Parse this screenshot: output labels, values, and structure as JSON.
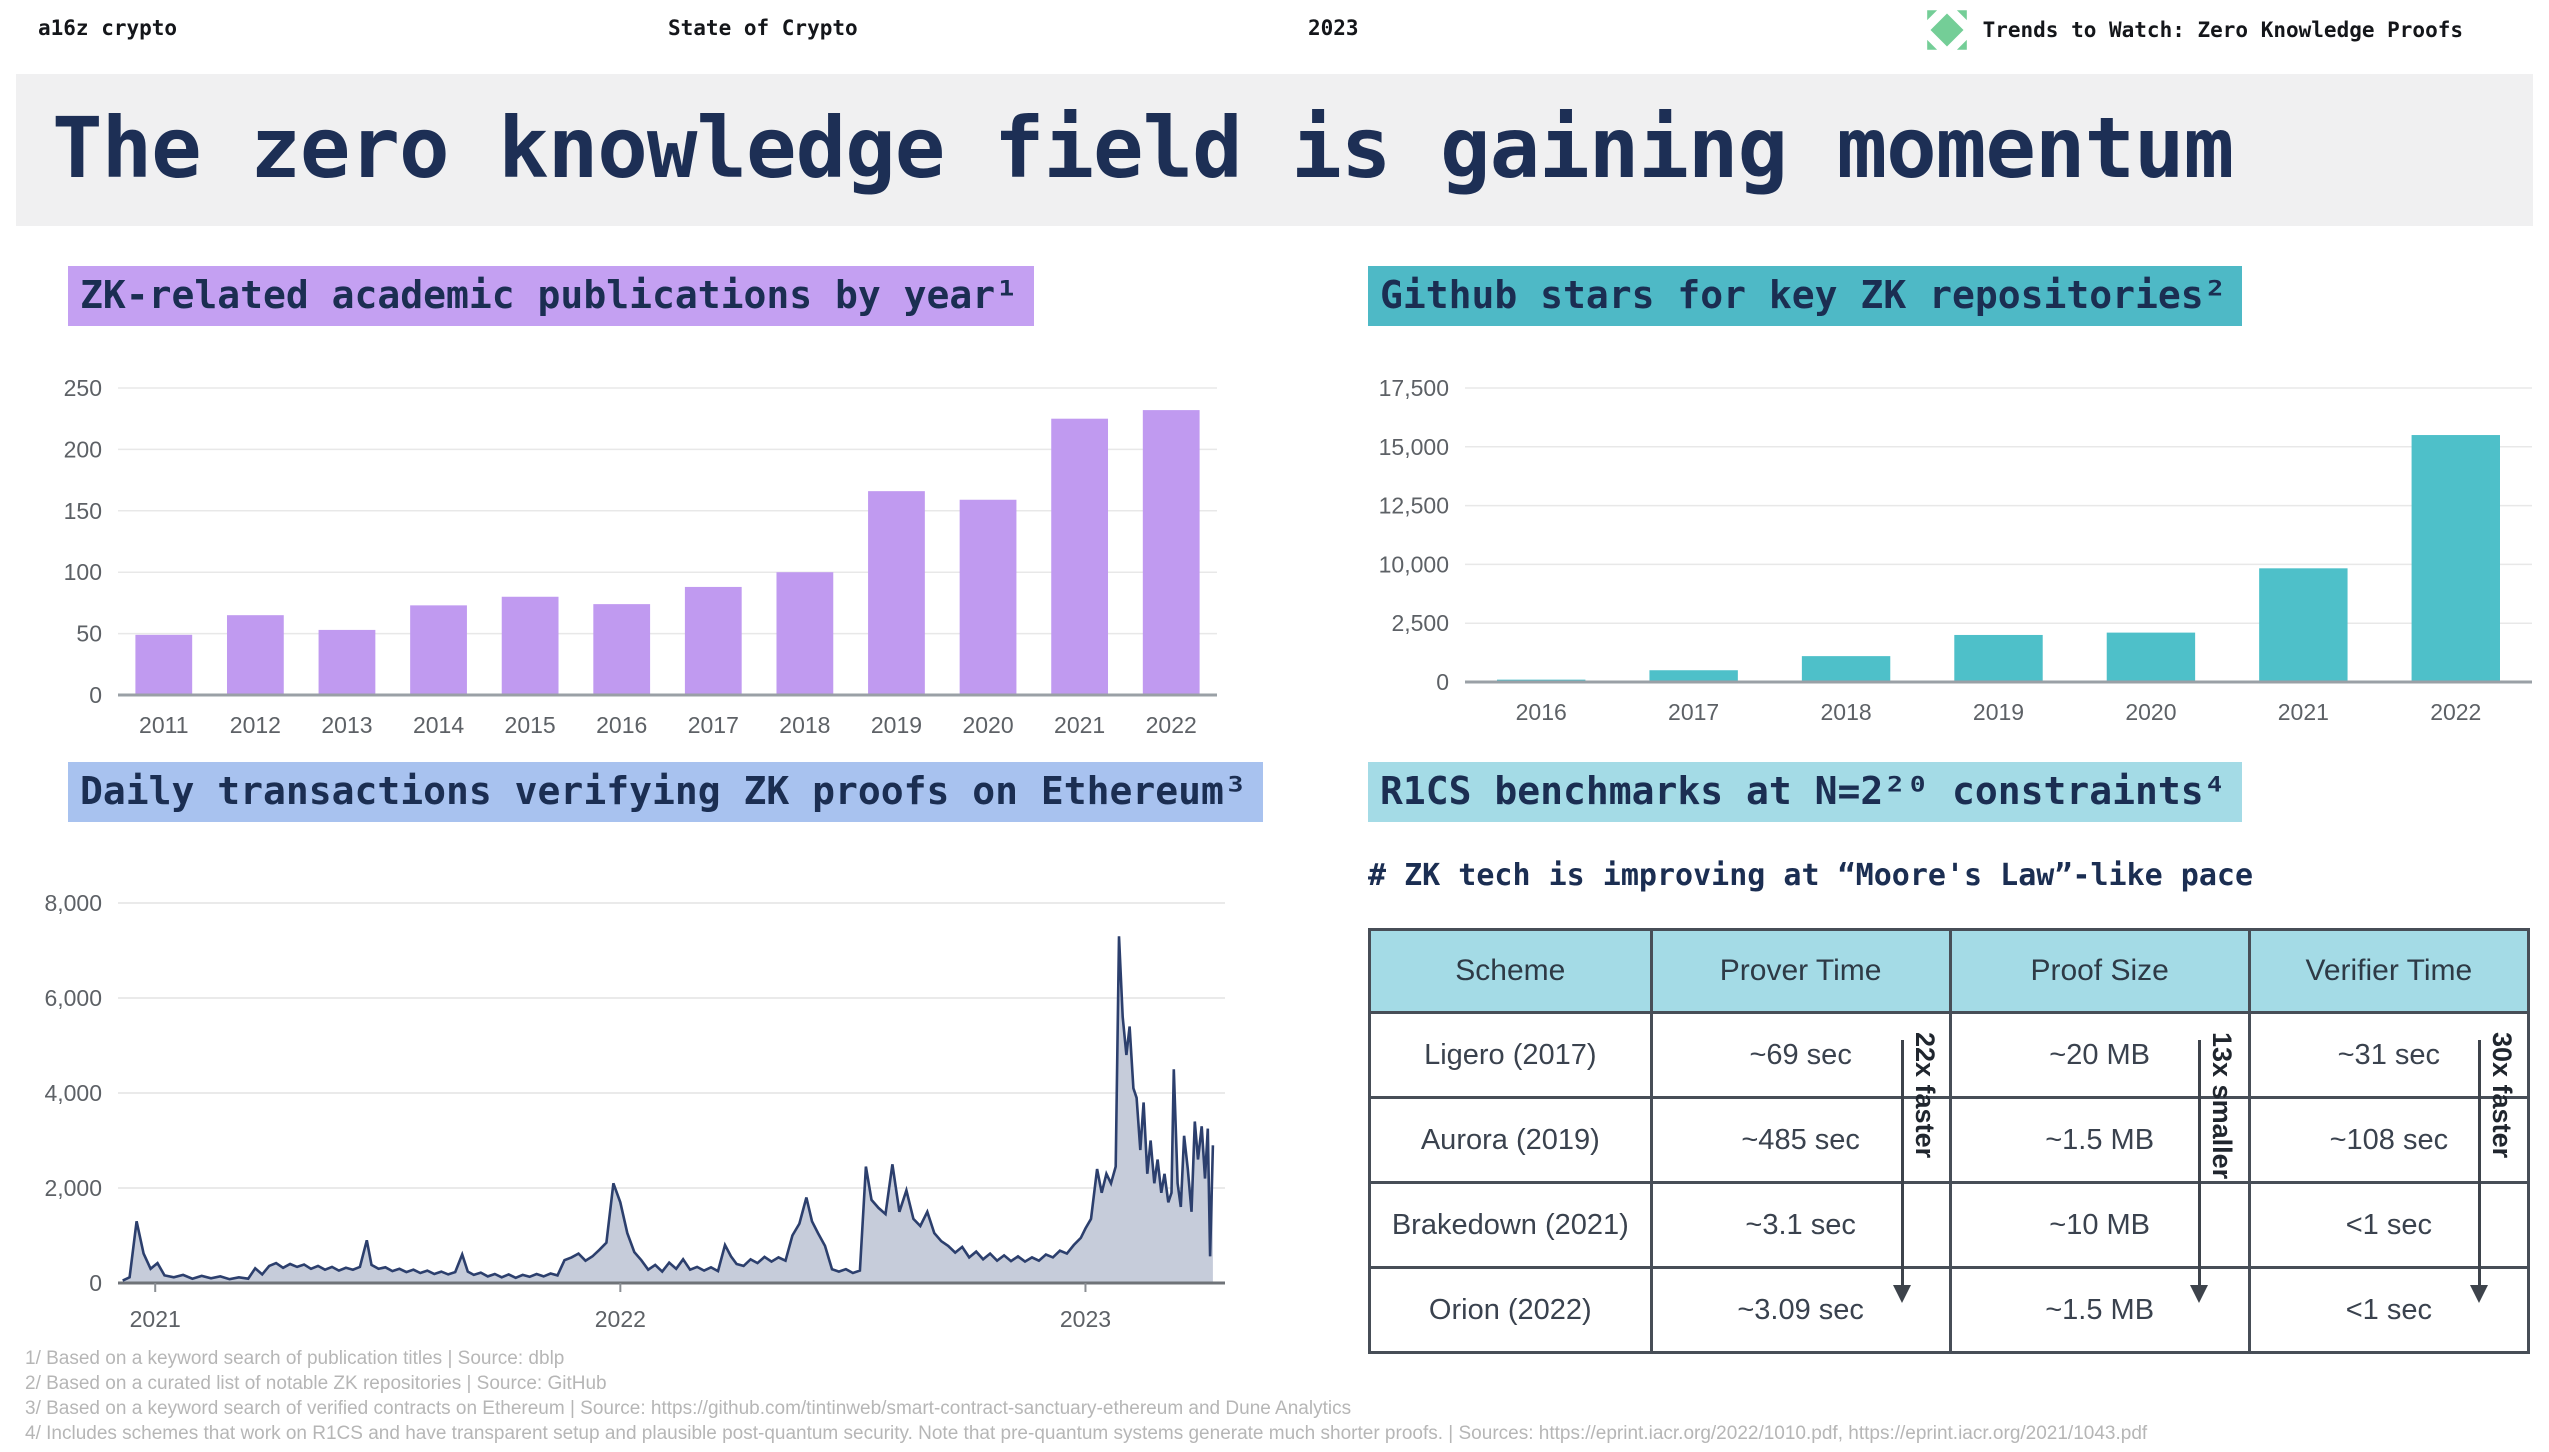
{
  "header": {
    "brand": "a16z crypto",
    "deck": "State of Crypto",
    "year": "2023",
    "right": "Trends to Watch: Zero Knowledge Proofs",
    "logo_color": "#74ce97"
  },
  "title": "The zero knowledge field is gaining momentum",
  "chart_data": [
    {
      "type": "bar",
      "title": "ZK-related academic publications by year¹",
      "highlight": "#c4a0f2",
      "color": "#c09af0",
      "categories": [
        "2011",
        "2012",
        "2013",
        "2014",
        "2015",
        "2016",
        "2017",
        "2018",
        "2019",
        "2020",
        "2021",
        "2022"
      ],
      "values": [
        49,
        65,
        53,
        73,
        80,
        74,
        88,
        100,
        166,
        159,
        225,
        232
      ],
      "y_ticks": {
        "values": [
          0,
          50,
          100,
          150,
          200,
          250
        ],
        "labels": [
          "0",
          "50",
          "100",
          "150",
          "200",
          "250"
        ]
      },
      "xlabel": "",
      "ylabel": "",
      "grid": true,
      "ylim": [
        0,
        250
      ]
    },
    {
      "type": "bar",
      "title": "Github stars for key ZK repositories²",
      "highlight": "#4eb9c6",
      "color": "#4ec0c9",
      "categories": [
        "2016",
        "2017",
        "2018",
        "2019",
        "2020",
        "2021",
        "2022"
      ],
      "values": [
        100,
        500,
        1100,
        2000,
        2100,
        9500,
        15500
      ],
      "y_ticks": {
        "values": [
          0,
          2500,
          10000,
          12500,
          15000,
          17500
        ],
        "labels": [
          "0",
          "2,500",
          "10,000",
          "12,500",
          "15,000",
          "17,500"
        ]
      },
      "xlabel": "",
      "ylabel": "",
      "grid": true,
      "ylim": [
        0,
        17500
      ]
    },
    {
      "type": "area",
      "title": "Daily transactions verifying ZK proofs on Ethereum³",
      "highlight": "#a8c2ef",
      "line_color": "#2c3f6d",
      "fill_color": "#c6ccda",
      "x_range": [
        2020.92,
        2023.3
      ],
      "x_ticks": {
        "values": [
          2021,
          2022,
          2023
        ],
        "labels": [
          "2021",
          "2022",
          "2023"
        ]
      },
      "y_ticks": {
        "values": [
          0,
          2000,
          4000,
          6000,
          8000
        ],
        "labels": [
          "0",
          "2,000",
          "4,000",
          "6,000",
          "8,000"
        ]
      },
      "ylim": [
        0,
        8000
      ],
      "grid": true,
      "points": [
        [
          2020.93,
          50
        ],
        [
          2020.945,
          120
        ],
        [
          2020.96,
          1300
        ],
        [
          2020.975,
          620
        ],
        [
          2020.99,
          300
        ],
        [
          2021.005,
          420
        ],
        [
          2021.02,
          160
        ],
        [
          2021.04,
          120
        ],
        [
          2021.06,
          170
        ],
        [
          2021.08,
          90
        ],
        [
          2021.1,
          150
        ],
        [
          2021.12,
          100
        ],
        [
          2021.14,
          140
        ],
        [
          2021.16,
          80
        ],
        [
          2021.18,
          120
        ],
        [
          2021.2,
          90
        ],
        [
          2021.215,
          310
        ],
        [
          2021.23,
          180
        ],
        [
          2021.245,
          360
        ],
        [
          2021.26,
          420
        ],
        [
          2021.275,
          320
        ],
        [
          2021.29,
          400
        ],
        [
          2021.305,
          340
        ],
        [
          2021.32,
          390
        ],
        [
          2021.335,
          300
        ],
        [
          2021.35,
          360
        ],
        [
          2021.365,
          280
        ],
        [
          2021.38,
          340
        ],
        [
          2021.395,
          260
        ],
        [
          2021.41,
          320
        ],
        [
          2021.425,
          280
        ],
        [
          2021.44,
          340
        ],
        [
          2021.455,
          900
        ],
        [
          2021.465,
          380
        ],
        [
          2021.48,
          300
        ],
        [
          2021.495,
          330
        ],
        [
          2021.51,
          250
        ],
        [
          2021.525,
          300
        ],
        [
          2021.54,
          230
        ],
        [
          2021.555,
          280
        ],
        [
          2021.57,
          210
        ],
        [
          2021.585,
          260
        ],
        [
          2021.6,
          190
        ],
        [
          2021.615,
          240
        ],
        [
          2021.63,
          180
        ],
        [
          2021.645,
          230
        ],
        [
          2021.66,
          600
        ],
        [
          2021.672,
          240
        ],
        [
          2021.685,
          170
        ],
        [
          2021.7,
          220
        ],
        [
          2021.715,
          140
        ],
        [
          2021.73,
          190
        ],
        [
          2021.745,
          120
        ],
        [
          2021.76,
          180
        ],
        [
          2021.775,
          110
        ],
        [
          2021.79,
          170
        ],
        [
          2021.805,
          130
        ],
        [
          2021.82,
          190
        ],
        [
          2021.835,
          140
        ],
        [
          2021.85,
          200
        ],
        [
          2021.865,
          160
        ],
        [
          2021.88,
          480
        ],
        [
          2021.895,
          540
        ],
        [
          2021.91,
          620
        ],
        [
          2021.925,
          470
        ],
        [
          2021.94,
          560
        ],
        [
          2021.955,
          700
        ],
        [
          2021.97,
          850
        ],
        [
          2021.985,
          2100
        ],
        [
          2022.0,
          1700
        ],
        [
          2022.015,
          1050
        ],
        [
          2022.03,
          650
        ],
        [
          2022.045,
          480
        ],
        [
          2022.06,
          280
        ],
        [
          2022.075,
          380
        ],
        [
          2022.09,
          240
        ],
        [
          2022.105,
          430
        ],
        [
          2022.12,
          300
        ],
        [
          2022.135,
          500
        ],
        [
          2022.15,
          280
        ],
        [
          2022.165,
          340
        ],
        [
          2022.18,
          260
        ],
        [
          2022.195,
          330
        ],
        [
          2022.21,
          250
        ],
        [
          2022.225,
          800
        ],
        [
          2022.238,
          560
        ],
        [
          2022.25,
          400
        ],
        [
          2022.265,
          360
        ],
        [
          2022.28,
          500
        ],
        [
          2022.295,
          420
        ],
        [
          2022.31,
          550
        ],
        [
          2022.325,
          450
        ],
        [
          2022.34,
          540
        ],
        [
          2022.355,
          470
        ],
        [
          2022.37,
          1000
        ],
        [
          2022.385,
          1250
        ],
        [
          2022.4,
          1800
        ],
        [
          2022.412,
          1300
        ],
        [
          2022.425,
          1050
        ],
        [
          2022.44,
          780
        ],
        [
          2022.455,
          290
        ],
        [
          2022.47,
          240
        ],
        [
          2022.485,
          290
        ],
        [
          2022.5,
          210
        ],
        [
          2022.515,
          260
        ],
        [
          2022.528,
          2450
        ],
        [
          2022.54,
          1750
        ],
        [
          2022.555,
          1580
        ],
        [
          2022.57,
          1450
        ],
        [
          2022.585,
          2500
        ],
        [
          2022.6,
          1500
        ],
        [
          2022.615,
          1950
        ],
        [
          2022.63,
          1350
        ],
        [
          2022.645,
          1200
        ],
        [
          2022.66,
          1500
        ],
        [
          2022.675,
          1050
        ],
        [
          2022.69,
          880
        ],
        [
          2022.705,
          780
        ],
        [
          2022.72,
          640
        ],
        [
          2022.735,
          760
        ],
        [
          2022.75,
          540
        ],
        [
          2022.765,
          660
        ],
        [
          2022.78,
          500
        ],
        [
          2022.795,
          620
        ],
        [
          2022.81,
          470
        ],
        [
          2022.825,
          580
        ],
        [
          2022.84,
          460
        ],
        [
          2022.855,
          560
        ],
        [
          2022.87,
          450
        ],
        [
          2022.885,
          540
        ],
        [
          2022.9,
          470
        ],
        [
          2022.915,
          600
        ],
        [
          2022.93,
          540
        ],
        [
          2022.945,
          680
        ],
        [
          2022.96,
          620
        ],
        [
          2022.975,
          800
        ],
        [
          2022.99,
          950
        ],
        [
          2023.0,
          1150
        ],
        [
          2023.012,
          1350
        ],
        [
          2023.025,
          2400
        ],
        [
          2023.035,
          1900
        ],
        [
          2023.045,
          2300
        ],
        [
          2023.055,
          2100
        ],
        [
          2023.065,
          2450
        ],
        [
          2023.072,
          7300
        ],
        [
          2023.08,
          5600
        ],
        [
          2023.088,
          4800
        ],
        [
          2023.095,
          5400
        ],
        [
          2023.103,
          4100
        ],
        [
          2023.11,
          3900
        ],
        [
          2023.118,
          2800
        ],
        [
          2023.125,
          3800
        ],
        [
          2023.133,
          2300
        ],
        [
          2023.14,
          3000
        ],
        [
          2023.148,
          2100
        ],
        [
          2023.155,
          2600
        ],
        [
          2023.163,
          1900
        ],
        [
          2023.17,
          2300
        ],
        [
          2023.178,
          1700
        ],
        [
          2023.185,
          1900
        ],
        [
          2023.19,
          4500
        ],
        [
          2023.198,
          2100
        ],
        [
          2023.205,
          1600
        ],
        [
          2023.212,
          3100
        ],
        [
          2023.22,
          2400
        ],
        [
          2023.228,
          1500
        ],
        [
          2023.235,
          3400
        ],
        [
          2023.242,
          2600
        ],
        [
          2023.25,
          3300
        ],
        [
          2023.257,
          2200
        ],
        [
          2023.263,
          3250
        ],
        [
          2023.268,
          560
        ],
        [
          2023.274,
          2900
        ]
      ]
    },
    {
      "type": "table",
      "title": "R1CS benchmarks at N=2²⁰ constraints⁴",
      "highlight": "#a4dbe6",
      "subtitle": "# ZK tech is improving at “Moore's Law”-like pace",
      "headers": [
        "Scheme",
        "Prover Time",
        "Proof Size",
        "Verifier Time"
      ],
      "rows": [
        [
          "Ligero (2017)",
          "~69 sec",
          "~20 MB",
          "~31 sec"
        ],
        [
          "Aurora (2019)",
          "~485 sec",
          "~1.5 MB",
          "~108 sec"
        ],
        [
          "Brakedown (2021)",
          "~3.1 sec",
          "~10 MB",
          "<1 sec"
        ],
        [
          "Orion (2022)",
          "~3.09 sec",
          "~1.5 MB",
          "<1 sec"
        ]
      ],
      "annotations": [
        {
          "column": "Prover Time",
          "label": "22x faster"
        },
        {
          "column": "Proof Size",
          "label": "13x smaller"
        },
        {
          "column": "Verifier Time",
          "label": "30x faster"
        }
      ]
    }
  ],
  "footnotes": [
    "1/ Based on a keyword search of publication titles | Source: dblp",
    "2/ Based on a curated list of notable ZK repositories | Source: GitHub",
    "3/ Based on a keyword search of verified contracts on Ethereum | Source: https://github.com/tintinweb/smart-contract-sanctuary-ethereum and Dune Analytics",
    "4/ Includes schemes that work on R1CS and have transparent setup and plausible post-quantum security. Note that pre-quantum systems generate much shorter proofs.  | Sources: https://eprint.iacr.org/2022/1010.pdf, https://eprint.iacr.org/2021/1043.pdf"
  ]
}
